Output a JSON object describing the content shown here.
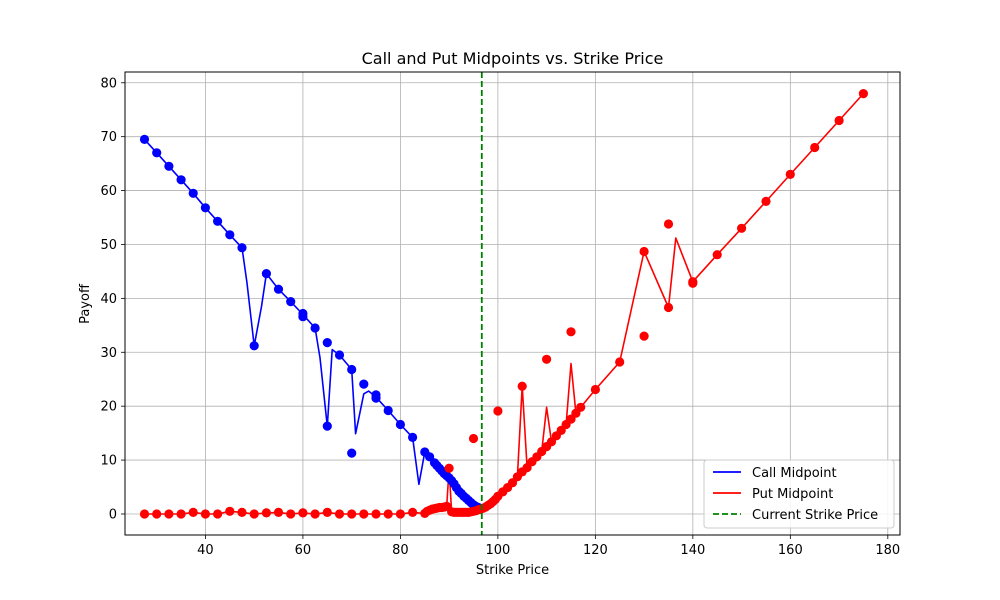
{
  "chart_data": {
    "type": "line",
    "title": "Call and Put Midpoints vs. Strike Price",
    "xlabel": "Strike Price",
    "ylabel": "Payoff",
    "xlim": [
      23.5,
      182.5
    ],
    "ylim": [
      -3.9,
      82
    ],
    "xticks": [
      40,
      60,
      80,
      100,
      120,
      140,
      160,
      180
    ],
    "yticks": [
      0,
      10,
      20,
      30,
      40,
      50,
      60,
      70,
      80
    ],
    "grid": true,
    "legend_position": "lower-right",
    "vline": {
      "x": 96.7,
      "name": "Current Strike Price",
      "color": "#008000",
      "style": "dashed"
    },
    "series": [
      {
        "name": "Call Midpoint",
        "color": "#0000ff",
        "x": [
          27.5,
          30,
          32.5,
          35,
          37.5,
          40,
          42.5,
          45,
          47.5,
          48.5,
          50,
          51.5,
          52.5,
          55,
          57.5,
          60,
          60.5,
          62.5,
          63.5,
          64.8,
          65,
          66,
          67.5,
          70,
          70.8,
          72.5,
          73.5,
          75,
          77.5,
          80,
          82.5,
          83.8,
          85,
          86,
          87,
          87.5,
          88,
          88.5,
          89,
          89.5,
          90,
          90.5,
          91,
          91.5,
          92,
          92.5,
          93,
          93.5,
          94,
          94.5,
          95,
          95.5,
          96
        ],
        "y": [
          69.5,
          67,
          64.5,
          62,
          59.5,
          56.8,
          54.3,
          51.8,
          49.4,
          43,
          31.2,
          38.5,
          44.6,
          41.7,
          39.4,
          37,
          36.5,
          34.5,
          29,
          18,
          16.3,
          30.5,
          29.5,
          26.8,
          14.9,
          22.3,
          22.8,
          21.7,
          19.2,
          16.6,
          14.2,
          5.5,
          11.5,
          10.6,
          9.5,
          9,
          8.5,
          8,
          7.5,
          7.1,
          6.7,
          6.2,
          5.6,
          4.9,
          4.2,
          3.8,
          3.3,
          2.9,
          2.5,
          2.1,
          1.7,
          1.4,
          1.2
        ]
      },
      {
        "name": "Put Midpoint",
        "color": "#ff0000",
        "x": [
          27.5,
          30,
          32.5,
          35,
          37.5,
          40,
          42.5,
          45,
          47.5,
          50,
          52.5,
          55,
          57.5,
          60,
          62.5,
          65,
          67.5,
          70,
          72.5,
          75,
          77.5,
          80,
          82.5,
          85,
          85.5,
          86,
          86.5,
          87,
          87.5,
          88,
          88.5,
          89,
          89.5,
          90,
          90.5,
          91,
          91.5,
          92,
          92.5,
          93,
          93.5,
          94,
          94.5,
          95,
          95.5,
          96,
          96.5,
          97,
          97.5,
          98,
          98.5,
          99,
          99.5,
          100,
          101,
          102,
          103,
          104,
          105,
          106,
          107,
          108,
          109,
          110,
          111,
          112,
          113,
          114,
          115,
          116,
          117,
          120,
          125,
          130,
          135,
          136.5,
          140,
          145,
          150,
          155,
          160,
          165,
          170,
          175
        ],
        "y": [
          0,
          0,
          0,
          0,
          0.3,
          0,
          0,
          0.5,
          0.3,
          0,
          0.2,
          0.3,
          0,
          0.2,
          0,
          0.3,
          0,
          0,
          0,
          0,
          0,
          0,
          0.3,
          0.1,
          0.5,
          0.7,
          0.9,
          1,
          1.1,
          1.2,
          1.2,
          1.3,
          1.4,
          8.5,
          0.4,
          0.3,
          0.3,
          0.3,
          0.3,
          0.3,
          0.3,
          0.3,
          0.4,
          0.5,
          0.6,
          0.8,
          0.9,
          1.1,
          1.3,
          1.6,
          1.9,
          2.3,
          2.7,
          3.3,
          4.1,
          4.9,
          5.8,
          6.9,
          23.7,
          8.6,
          9.7,
          10.6,
          11.6,
          19.8,
          13.4,
          14.5,
          15.5,
          16.6,
          27.9,
          18.7,
          19.8,
          23.1,
          28.2,
          48.7,
          38.3,
          51.2,
          43.1,
          48.1,
          53,
          58,
          63,
          68,
          73,
          78
        ]
      }
    ],
    "scatter": [
      {
        "name": "Call Midpoint",
        "color": "#0000ff",
        "x": [
          27.5,
          30,
          32.5,
          35,
          37.5,
          40,
          42.5,
          45,
          47.5,
          50,
          52.5,
          55,
          57.5,
          60,
          60,
          62.5,
          65,
          65,
          67.5,
          70,
          70,
          72.5,
          75,
          75,
          77.5,
          80,
          82.5,
          85,
          86,
          87,
          87.5,
          88,
          88.5,
          89,
          89.5,
          90,
          90.5,
          91,
          91.5,
          92,
          92.5,
          93,
          93.5,
          94,
          94.5,
          95,
          95.5,
          96
        ],
        "y": [
          69.5,
          67,
          64.5,
          62,
          59.5,
          56.8,
          54.3,
          51.8,
          49.4,
          31.2,
          44.6,
          41.7,
          39.4,
          37.2,
          36.6,
          34.5,
          31.8,
          16.3,
          29.5,
          26.8,
          11.3,
          24.1,
          22.1,
          21.5,
          19.2,
          16.6,
          14.2,
          11.5,
          10.6,
          9.5,
          9,
          8.5,
          8,
          7.5,
          7.1,
          6.7,
          6.2,
          5.6,
          4.9,
          4.2,
          3.8,
          3.3,
          2.9,
          2.5,
          2.1,
          1.7,
          1.4,
          1.2
        ]
      },
      {
        "name": "Put Midpoint",
        "color": "#ff0000",
        "x": [
          27.5,
          30,
          32.5,
          35,
          37.5,
          40,
          42.5,
          45,
          47.5,
          50,
          52.5,
          55,
          57.5,
          60,
          62.5,
          65,
          67.5,
          70,
          72.5,
          75,
          77.5,
          80,
          82.5,
          85,
          85.5,
          86,
          86.5,
          87,
          87.5,
          88,
          88.5,
          89,
          89.5,
          90,
          90.5,
          91,
          91.5,
          92,
          92.5,
          93,
          93.5,
          94,
          94.5,
          95,
          95.5,
          96,
          96.5,
          97,
          97.5,
          98,
          98.5,
          99,
          99.5,
          100,
          100,
          101,
          102,
          103,
          104,
          105,
          105,
          106,
          107,
          108,
          109,
          110,
          110,
          111,
          112,
          113,
          114,
          115,
          115,
          116,
          117,
          120,
          125,
          130,
          130,
          135,
          135,
          140,
          140,
          145,
          150,
          155,
          160,
          165,
          170,
          175
        ],
        "y": [
          0,
          0,
          0,
          0,
          0.3,
          0,
          0,
          0.5,
          0.3,
          0,
          0.2,
          0.3,
          0,
          0.2,
          0,
          0.3,
          0,
          0,
          0,
          0,
          0,
          0,
          0.3,
          0.1,
          0.5,
          0.7,
          0.9,
          1,
          1.1,
          1.2,
          1.2,
          1.3,
          1.4,
          8.5,
          0.4,
          0.3,
          0.3,
          0.3,
          0.3,
          0.3,
          0.3,
          0.3,
          0.4,
          0.5,
          0.6,
          0.8,
          0.9,
          1.1,
          1.3,
          1.6,
          1.9,
          2.3,
          2.7,
          3.3,
          19.1,
          4.1,
          4.9,
          5.8,
          6.9,
          7.8,
          23.7,
          8.6,
          9.7,
          10.6,
          11.6,
          12.5,
          28.7,
          13.4,
          14.5,
          15.5,
          16.6,
          17.6,
          33.8,
          18.7,
          19.8,
          23.1,
          28.2,
          48.7,
          33,
          53.8,
          38.3,
          43.1,
          42.8,
          48.1,
          53,
          58,
          63,
          68,
          73,
          78
        ]
      },
      {
        "name": "Put Midpoint",
        "color": "#ff0000",
        "x": [
          95
        ],
        "y": [
          14
        ]
      }
    ]
  }
}
